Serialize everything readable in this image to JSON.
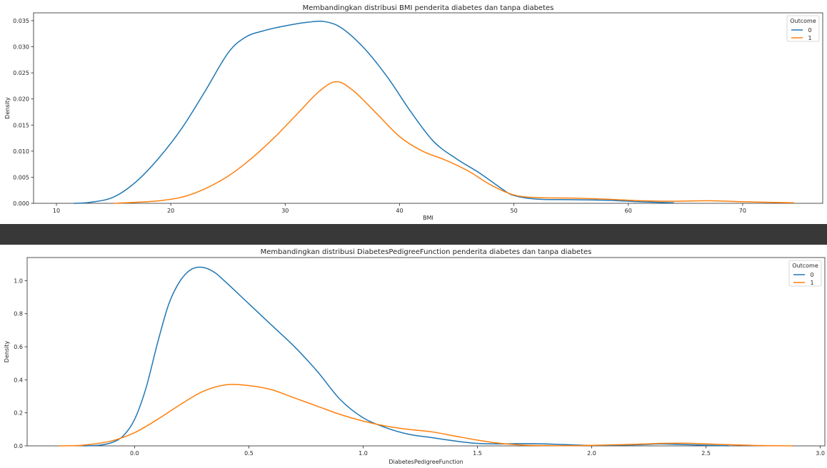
{
  "chart_data": [
    {
      "type": "line",
      "title": "Membandingkan distribusi BMI penderita diabetes dan tanpa diabetes",
      "xlabel": "BMI",
      "ylabel": "Density",
      "xlim": [
        8.0,
        77.0
      ],
      "ylim": [
        0,
        0.0365
      ],
      "xticks": [
        10,
        20,
        30,
        40,
        50,
        60,
        70
      ],
      "xtick_labels": [
        "10",
        "20",
        "30",
        "40",
        "50",
        "60",
        "70"
      ],
      "yticks": [
        0,
        0.005,
        0.01,
        0.015,
        0.02,
        0.025,
        0.03,
        0.035
      ],
      "ytick_labels": [
        "0.000",
        "0.005",
        "0.010",
        "0.015",
        "0.020",
        "0.025",
        "0.030",
        "0.035"
      ],
      "grid": false,
      "legend": {
        "title": "Outcome",
        "position": "upper right"
      },
      "series": [
        {
          "name": "0",
          "color": "#1f77b4",
          "x": [
            11.5,
            13,
            15,
            17,
            19,
            21,
            23,
            25,
            26.5,
            28,
            30,
            32,
            33.5,
            35,
            37,
            39,
            41,
            43,
            45,
            47,
            49,
            50,
            52,
            55,
            58,
            61,
            64
          ],
          "y": [
            0.0,
            0.0002,
            0.0012,
            0.0042,
            0.0088,
            0.0145,
            0.0215,
            0.0288,
            0.0318,
            0.033,
            0.034,
            0.0347,
            0.0348,
            0.0335,
            0.0295,
            0.024,
            0.0175,
            0.0118,
            0.0085,
            0.0058,
            0.0027,
            0.0015,
            0.0008,
            0.0007,
            0.0006,
            0.0003,
            0.0001
          ]
        },
        {
          "name": "1",
          "color": "#ff7f0e",
          "x": [
            15,
            17,
            19,
            21,
            23,
            25,
            27,
            29,
            31,
            33,
            34.5,
            36,
            38,
            40,
            42,
            44,
            46,
            48,
            50,
            52,
            55,
            58,
            61,
            64,
            67,
            70,
            74.5
          ],
          "y": [
            0.0,
            0.0002,
            0.0005,
            0.0012,
            0.0028,
            0.0052,
            0.0085,
            0.0125,
            0.017,
            0.0215,
            0.0233,
            0.0215,
            0.0172,
            0.0128,
            0.01,
            0.0083,
            0.0062,
            0.0035,
            0.0016,
            0.0011,
            0.001,
            0.0008,
            0.0005,
            0.0004,
            0.0005,
            0.0003,
            0.0001
          ]
        }
      ]
    },
    {
      "type": "line",
      "title": "Membandingkan distribusi DiabetesPedigreeFunction penderita diabetes dan tanpa diabetes",
      "xlabel": "DiabetesPedigreeFunction",
      "ylabel": "Density",
      "xlim": [
        -0.47,
        3.02
      ],
      "ylim": [
        0,
        1.14
      ],
      "xticks": [
        0.0,
        0.5,
        1.0,
        1.5,
        2.0,
        2.5,
        3.0
      ],
      "xtick_labels": [
        "0.0",
        "0.5",
        "1.0",
        "1.5",
        "2.0",
        "2.5",
        "3.0"
      ],
      "yticks": [
        0,
        0.2,
        0.4,
        0.6,
        0.8,
        1.0
      ],
      "ytick_labels": [
        "0.0",
        "0.2",
        "0.4",
        "0.6",
        "0.8",
        "1.0"
      ],
      "grid": false,
      "legend": {
        "title": "Outcome",
        "position": "upper right"
      },
      "series": [
        {
          "name": "0",
          "color": "#1f77b4",
          "x": [
            -0.22,
            -0.15,
            -0.1,
            -0.05,
            0.0,
            0.05,
            0.1,
            0.15,
            0.2,
            0.25,
            0.3,
            0.35,
            0.4,
            0.5,
            0.6,
            0.7,
            0.8,
            0.9,
            1.0,
            1.1,
            1.2,
            1.3,
            1.4,
            1.5,
            1.6,
            1.7,
            1.8,
            2.0,
            2.2,
            2.3,
            2.4,
            2.6
          ],
          "y": [
            0.0,
            0.005,
            0.02,
            0.06,
            0.16,
            0.35,
            0.62,
            0.86,
            1.0,
            1.07,
            1.08,
            1.05,
            0.99,
            0.86,
            0.73,
            0.6,
            0.45,
            0.28,
            0.17,
            0.11,
            0.07,
            0.05,
            0.03,
            0.015,
            0.012,
            0.014,
            0.012,
            0.003,
            0.007,
            0.012,
            0.008,
            0.0
          ]
        },
        {
          "name": "1",
          "color": "#ff7f0e",
          "x": [
            -0.33,
            -0.25,
            -0.2,
            -0.1,
            0.0,
            0.1,
            0.2,
            0.3,
            0.4,
            0.5,
            0.6,
            0.7,
            0.8,
            0.9,
            1.0,
            1.1,
            1.2,
            1.3,
            1.4,
            1.5,
            1.6,
            1.7,
            1.8,
            1.9,
            2.0,
            2.2,
            2.3,
            2.4,
            2.5,
            2.7,
            2.88
          ],
          "y": [
            0.0,
            0.002,
            0.008,
            0.03,
            0.08,
            0.16,
            0.25,
            0.33,
            0.37,
            0.365,
            0.34,
            0.29,
            0.24,
            0.19,
            0.15,
            0.12,
            0.1,
            0.085,
            0.06,
            0.035,
            0.015,
            0.005,
            0.002,
            0.001,
            0.003,
            0.01,
            0.015,
            0.016,
            0.012,
            0.003,
            0.0
          ]
        }
      ]
    }
  ]
}
